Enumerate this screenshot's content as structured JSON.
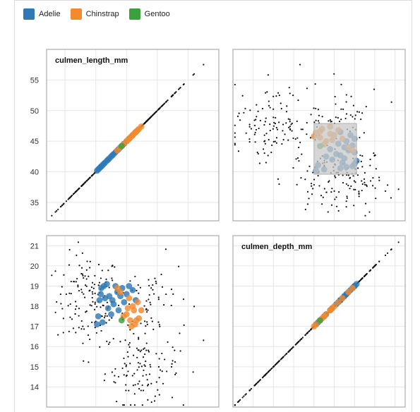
{
  "chart_data": {
    "type": "scatter",
    "variables": [
      "culmen_length_mm",
      "culmen_depth_mm"
    ],
    "legend": {
      "placement": "top-left",
      "entries": [
        {
          "name": "Adelie",
          "color": "#2f7ab6"
        },
        {
          "name": "Chinstrap",
          "color": "#f28a2e"
        },
        {
          "name": "Gentoo",
          "color": "#3ba03e"
        }
      ]
    },
    "axes": {
      "culmen_length_mm": {
        "range": [
          32,
          60
        ],
        "ticks": [
          35,
          40,
          45,
          50,
          55
        ]
      },
      "culmen_depth_mm": {
        "range": [
          13,
          21.5
        ],
        "ticks": [
          14,
          15,
          16,
          17,
          18,
          19,
          20,
          21
        ]
      }
    },
    "grid": true,
    "brush": {
      "culmen_length_mm": [
        39.6,
        47.9
      ],
      "culmen_depth_mm": [
        17.0,
        19.1
      ]
    },
    "panels": [
      {
        "row": "culmen_length_mm",
        "col": "culmen_length_mm",
        "kind": "diagonal",
        "label": "culmen_length_mm"
      },
      {
        "row": "culmen_length_mm",
        "col": "culmen_depth_mm",
        "kind": "scatter"
      },
      {
        "row": "culmen_depth_mm",
        "col": "culmen_length_mm",
        "kind": "scatter"
      },
      {
        "row": "culmen_depth_mm",
        "col": "culmen_depth_mm",
        "kind": "diagonal",
        "label": "culmen_depth_mm"
      }
    ],
    "selected_points": [
      {
        "species": "Adelie",
        "length": 40.2,
        "depth": 17.1
      },
      {
        "species": "Adelie",
        "length": 40.4,
        "depth": 17.5
      },
      {
        "species": "Adelie",
        "length": 40.6,
        "depth": 18.3
      },
      {
        "species": "Adelie",
        "length": 40.8,
        "depth": 18.6
      },
      {
        "species": "Adelie",
        "length": 40.9,
        "depth": 18.9
      },
      {
        "species": "Adelie",
        "length": 41.1,
        "depth": 17.2
      },
      {
        "species": "Adelie",
        "length": 41.3,
        "depth": 19.0
      },
      {
        "species": "Adelie",
        "length": 41.5,
        "depth": 18.4
      },
      {
        "species": "Adelie",
        "length": 41.8,
        "depth": 19.1
      },
      {
        "species": "Adelie",
        "length": 42.0,
        "depth": 17.9
      },
      {
        "species": "Adelie",
        "length": 42.2,
        "depth": 18.5
      },
      {
        "species": "Adelie",
        "length": 42.5,
        "depth": 17.6
      },
      {
        "species": "Adelie",
        "length": 42.7,
        "depth": 18.3
      },
      {
        "species": "Adelie",
        "length": 42.9,
        "depth": 18.1
      },
      {
        "species": "Adelie",
        "length": 43.2,
        "depth": 19.0
      },
      {
        "species": "Adelie",
        "length": 43.5,
        "depth": 18.7
      },
      {
        "species": "Adelie",
        "length": 43.7,
        "depth": 17.8
      },
      {
        "species": "Adelie",
        "length": 44.0,
        "depth": 18.5
      },
      {
        "species": "Adelie",
        "length": 44.3,
        "depth": 18.9
      },
      {
        "species": "Adelie",
        "length": 44.6,
        "depth": 18.2
      },
      {
        "species": "Adelie",
        "length": 45.0,
        "depth": 18.6
      },
      {
        "species": "Adelie",
        "length": 45.4,
        "depth": 19.0
      },
      {
        "species": "Adelie",
        "length": 46.0,
        "depth": 18.8
      },
      {
        "species": "Adelie",
        "length": 46.5,
        "depth": 18.3
      },
      {
        "species": "Chinstrap",
        "length": 43.5,
        "depth": 18.9
      },
      {
        "species": "Chinstrap",
        "length": 44.0,
        "depth": 18.7
      },
      {
        "species": "Chinstrap",
        "length": 44.5,
        "depth": 17.5
      },
      {
        "species": "Chinstrap",
        "length": 45.0,
        "depth": 17.6
      },
      {
        "species": "Chinstrap",
        "length": 45.2,
        "depth": 17.9
      },
      {
        "species": "Chinstrap",
        "length": 45.4,
        "depth": 18.4
      },
      {
        "species": "Chinstrap",
        "length": 45.6,
        "depth": 17.3
      },
      {
        "species": "Chinstrap",
        "length": 45.8,
        "depth": 17.0
      },
      {
        "species": "Chinstrap",
        "length": 46.0,
        "depth": 18.0
      },
      {
        "species": "Chinstrap",
        "length": 46.2,
        "depth": 17.8
      },
      {
        "species": "Chinstrap",
        "length": 46.4,
        "depth": 17.1
      },
      {
        "species": "Chinstrap",
        "length": 46.6,
        "depth": 17.3
      },
      {
        "species": "Chinstrap",
        "length": 46.8,
        "depth": 18.2
      },
      {
        "species": "Chinstrap",
        "length": 47.0,
        "depth": 17.4
      },
      {
        "species": "Chinstrap",
        "length": 47.4,
        "depth": 17.8
      },
      {
        "species": "Gentoo",
        "length": 44.2,
        "depth": 17.3
      }
    ]
  }
}
